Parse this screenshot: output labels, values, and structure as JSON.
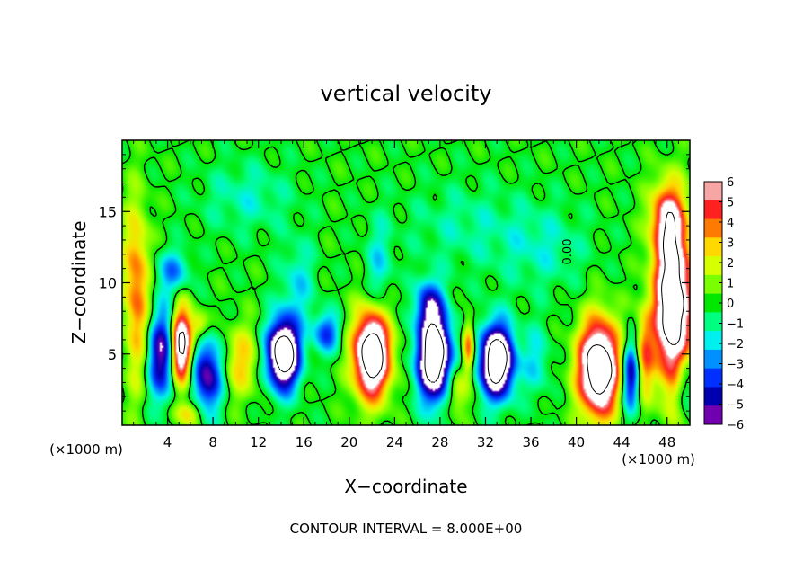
{
  "chart_data": {
    "type": "heatmap",
    "title": "vertical velocity",
    "xlabel": "X−coordinate",
    "ylabel": "Z−coordinate",
    "x_unit_left": "(×1000 m)",
    "x_unit_right": "(×1000 m)",
    "footer": "CONTOUR INTERVAL = 8.000E+00",
    "xlim": [
      0,
      50
    ],
    "ylim": [
      0,
      20
    ],
    "x_ticks": [
      4,
      8,
      12,
      16,
      20,
      24,
      28,
      32,
      36,
      40,
      44,
      48
    ],
    "y_ticks": [
      5,
      10,
      15
    ],
    "colorbar": {
      "range": [
        -6,
        6
      ],
      "ticks": [
        6,
        5,
        4,
        3,
        2,
        1,
        0,
        -1,
        -2,
        -3,
        -4,
        -5,
        -6
      ],
      "tick_labels": [
        "6",
        "5",
        "4",
        "3",
        "2",
        "1",
        "0",
        "−1",
        "−2",
        "−3",
        "−4",
        "−5",
        "−6"
      ],
      "colors": [
        "#f7a5a5",
        "#ff2020",
        "#ff7a00",
        "#ffd800",
        "#d6ff00",
        "#7aff00",
        "#00e800",
        "#00ff80",
        "#00f0f0",
        "#0090ff",
        "#0030ff",
        "#0000b0",
        "#7000b0"
      ]
    },
    "contour_label": "0.00",
    "features": [
      {
        "x": 0.5,
        "z": 7.5,
        "w": -1,
        "sx": 1.2,
        "sz": 4.0
      },
      {
        "x": 1.2,
        "z": 9.0,
        "w": 5,
        "sx": 1.2,
        "sz": 6.0
      },
      {
        "x": 5.2,
        "z": 5.5,
        "w": 10,
        "sx": 0.9,
        "sz": 2.6
      },
      {
        "x": 3.5,
        "z": 5.0,
        "w": -6,
        "sx": 1.3,
        "sz": 3.2
      },
      {
        "x": 7.5,
        "z": 3.5,
        "w": -6,
        "sx": 1.3,
        "sz": 2.6
      },
      {
        "x": 4.5,
        "z": 10.8,
        "w": -3,
        "sx": 1.5,
        "sz": 1.5
      },
      {
        "x": 6.8,
        "z": 7.0,
        "w": 3,
        "sx": 0.8,
        "sz": 1.0
      },
      {
        "x": 5.8,
        "z": 0.8,
        "w": 3,
        "sx": 1.2,
        "sz": 0.9
      },
      {
        "x": 10.5,
        "z": 4.5,
        "w": 3,
        "sx": 1.5,
        "sz": 2.5
      },
      {
        "x": 14.2,
        "z": 5.0,
        "w": -11,
        "sx": 1.4,
        "sz": 2.4
      },
      {
        "x": 15.5,
        "z": 10.0,
        "w": -2,
        "sx": 1.5,
        "sz": 3.0
      },
      {
        "x": 18.0,
        "z": 6.5,
        "w": -4,
        "sx": 1.2,
        "sz": 1.4
      },
      {
        "x": 22.0,
        "z": 5.0,
        "w": 11,
        "sx": 1.6,
        "sz": 3.0
      },
      {
        "x": 22.6,
        "z": 11.0,
        "w": -2,
        "sx": 1.2,
        "sz": 3.5
      },
      {
        "x": 27.5,
        "z": 4.8,
        "w": -11,
        "sx": 1.5,
        "sz": 3.0
      },
      {
        "x": 27.0,
        "z": 8.5,
        "w": -4,
        "sx": 1.2,
        "sz": 1.8
      },
      {
        "x": 29.5,
        "z": 2.5,
        "w": 3,
        "sx": 1.0,
        "sz": 1.8
      },
      {
        "x": 33.0,
        "z": 4.5,
        "w": -11,
        "sx": 1.5,
        "sz": 2.5
      },
      {
        "x": 30.5,
        "z": 5.5,
        "w": 5,
        "sx": 0.5,
        "sz": 1.8
      },
      {
        "x": 36.5,
        "z": 4.5,
        "w": -2,
        "sx": 1.2,
        "sz": 2.5
      },
      {
        "x": 42.0,
        "z": 4.0,
        "w": 11,
        "sx": 1.8,
        "sz": 3.3
      },
      {
        "x": 44.8,
        "z": 3.5,
        "w": -6,
        "sx": 0.8,
        "sz": 2.5
      },
      {
        "x": 46.0,
        "z": 5.0,
        "w": 4,
        "sx": 0.8,
        "sz": 3.0
      },
      {
        "x": 48.5,
        "z": 8.5,
        "w": 11,
        "sx": 1.6,
        "sz": 5.5
      },
      {
        "x": 48.0,
        "z": 14.5,
        "w": 5,
        "sx": 1.5,
        "sz": 2.5
      },
      {
        "x": 49.5,
        "z": 3.0,
        "w": -3,
        "sx": 0.8,
        "sz": 2.0
      },
      {
        "x": 37.0,
        "z": 12.5,
        "w": -1.5,
        "sx": 4.0,
        "sz": 3.0
      },
      {
        "x": 11.0,
        "z": 16.0,
        "w": -1.5,
        "sx": 4.0,
        "sz": 2.5
      },
      {
        "x": 30.0,
        "z": 14.0,
        "w": -1.2,
        "sx": 5.0,
        "sz": 3.0
      }
    ]
  }
}
